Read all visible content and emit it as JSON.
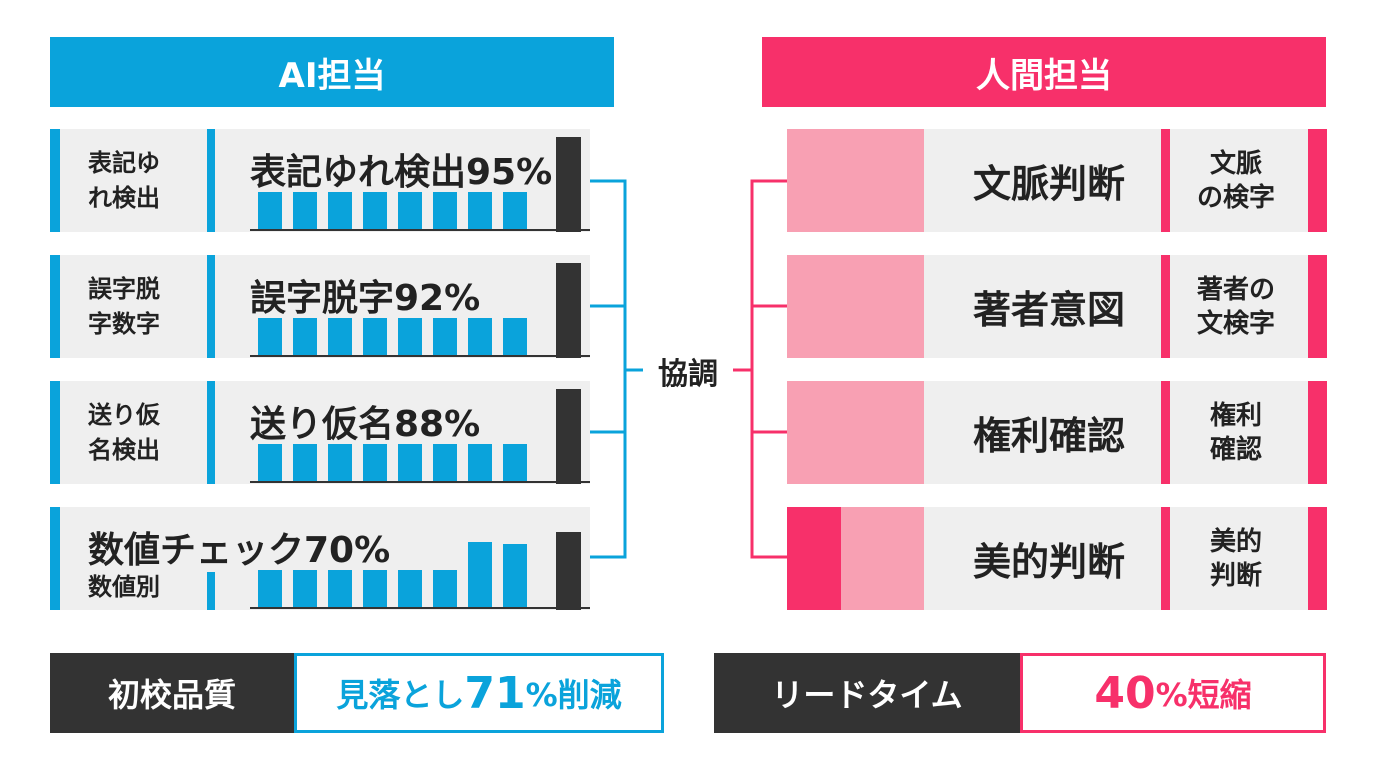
{
  "colors": {
    "ai_accent": "#0aa3db",
    "human_accent": "#f7306a",
    "human_light": "#f8a0b3",
    "dark": "#333333",
    "panel_bg": "#efefef"
  },
  "ai_header": "AI担当",
  "human_header": "人間担当",
  "center_label": "協調",
  "ai_rows": [
    {
      "sub": "表記ゆ\nれ検出",
      "title": "表記ゆれ検出95%"
    },
    {
      "sub": "誤字脱\n字数字",
      "title": "誤字脱字92%"
    },
    {
      "sub": "送り仮\n名検出",
      "title": "送り仮名88%"
    },
    {
      "title": "数値チェック70%",
      "sub": "数値別"
    }
  ],
  "human_rows": [
    {
      "title": "文脈判断",
      "sub": "文脈\nの検字"
    },
    {
      "title": "著者意図",
      "sub": "著者の\n文検字"
    },
    {
      "title": "権利確認",
      "sub": "権利\n確認"
    },
    {
      "title": "美的判断",
      "sub": "美的\n判断"
    }
  ],
  "metrics": {
    "ai": {
      "label": "初校品質",
      "value_prefix": "見落とし",
      "value_number": "71",
      "value_suffix": "%削減"
    },
    "human": {
      "label": "リードタイム",
      "value_number": "40",
      "value_suffix": "%短縮"
    }
  }
}
